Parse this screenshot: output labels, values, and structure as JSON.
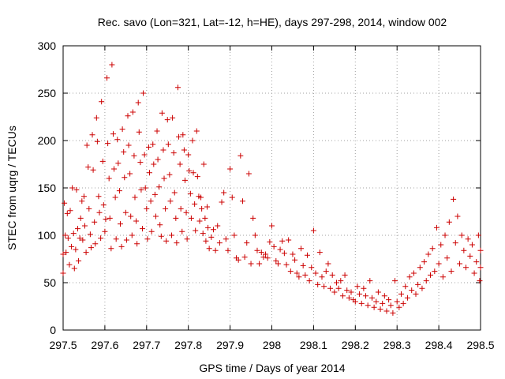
{
  "chart_data": {
    "type": "scatter",
    "title": "Rec. savo (Lon=321, Lat=-12, h=HE), days 297-298, 2014, window 002",
    "xlabel": "GPS time / Days of year 2014",
    "ylabel": "STEC from uqrg / TECUs",
    "xlim": [
      297.5,
      298.5
    ],
    "ylim": [
      0,
      300
    ],
    "xticks": [
      297.5,
      297.6,
      297.7,
      297.8,
      297.9,
      298,
      298.1,
      298.2,
      298.3,
      298.4,
      298.5
    ],
    "xtick_labels": [
      "297.5",
      "297.6",
      "297.7",
      "297.8",
      "297.9",
      "298",
      "298.1",
      "298.2",
      "298.3",
      "298.4",
      "298.5"
    ],
    "yticks": [
      0,
      50,
      100,
      150,
      200,
      250,
      300
    ],
    "ytick_labels": [
      "0",
      "50",
      "100",
      "150",
      "200",
      "250",
      "300"
    ],
    "grid": true,
    "marker": "plus",
    "color": "#cc0000",
    "series": [
      {
        "points": [
          [
            297.5,
            80
          ],
          [
            297.5,
            60
          ],
          [
            297.503,
            134
          ],
          [
            297.505,
            100
          ],
          [
            297.507,
            82
          ],
          [
            297.51,
            123
          ],
          [
            297.512,
            97
          ],
          [
            297.515,
            69
          ],
          [
            297.517,
            126
          ],
          [
            297.52,
            88
          ],
          [
            297.522,
            150
          ],
          [
            297.525,
            102
          ],
          [
            297.527,
            65
          ],
          [
            297.53,
            85
          ],
          [
            297.532,
            148
          ],
          [
            297.535,
            107
          ],
          [
            297.537,
            73
          ],
          [
            297.54,
            97
          ],
          [
            297.542,
            118
          ],
          [
            297.545,
            136
          ],
          [
            297.547,
            95
          ],
          [
            297.55,
            141
          ],
          [
            297.552,
            110
          ],
          [
            297.555,
            82
          ],
          [
            297.557,
            195
          ],
          [
            297.56,
            172
          ],
          [
            297.562,
            128
          ],
          [
            297.565,
            101
          ],
          [
            297.567,
            87
          ],
          [
            297.57,
            206
          ],
          [
            297.572,
            169
          ],
          [
            297.575,
            114
          ],
          [
            297.577,
            91
          ],
          [
            297.58,
            224
          ],
          [
            297.582,
            199
          ],
          [
            297.585,
            141
          ],
          [
            297.587,
            124
          ],
          [
            297.59,
            97
          ],
          [
            297.592,
            241
          ],
          [
            297.595,
            178
          ],
          [
            297.597,
            132
          ],
          [
            297.6,
            104
          ],
          [
            297.602,
            117
          ],
          [
            297.605,
            266
          ],
          [
            297.607,
            197
          ],
          [
            297.61,
            160
          ],
          [
            297.612,
            118
          ],
          [
            297.615,
            86
          ],
          [
            297.617,
            280
          ],
          [
            297.62,
            207
          ],
          [
            297.622,
            170
          ],
          [
            297.625,
            140
          ],
          [
            297.627,
            96
          ],
          [
            297.63,
            201
          ],
          [
            297.632,
            176
          ],
          [
            297.635,
            147
          ],
          [
            297.637,
            112
          ],
          [
            297.64,
            88
          ],
          [
            297.642,
            212
          ],
          [
            297.645,
            188
          ],
          [
            297.647,
            161
          ],
          [
            297.65,
            124
          ],
          [
            297.652,
            95
          ],
          [
            297.655,
            226
          ],
          [
            297.657,
            195
          ],
          [
            297.66,
            165
          ],
          [
            297.662,
            120
          ],
          [
            297.665,
            100
          ],
          [
            297.667,
            230
          ],
          [
            297.67,
            184
          ],
          [
            297.672,
            140
          ],
          [
            297.675,
            115
          ],
          [
            297.677,
            91
          ],
          [
            297.68,
            240
          ],
          [
            297.682,
            209
          ],
          [
            297.685,
            177
          ],
          [
            297.687,
            148
          ],
          [
            297.69,
            107
          ],
          [
            297.692,
            250
          ],
          [
            297.695,
            185
          ],
          [
            297.697,
            150
          ],
          [
            297.7,
            128
          ],
          [
            297.702,
            96
          ],
          [
            297.705,
            193
          ],
          [
            297.707,
            166
          ],
          [
            297.71,
            136
          ],
          [
            297.712,
            104
          ],
          [
            297.715,
            196
          ],
          [
            297.717,
            175
          ],
          [
            297.72,
            143
          ],
          [
            297.722,
            120
          ],
          [
            297.725,
            210
          ],
          [
            297.727,
            180
          ],
          [
            297.73,
            151
          ],
          [
            297.732,
            111
          ],
          [
            297.735,
            99
          ],
          [
            297.737,
            229
          ],
          [
            297.74,
            190
          ],
          [
            297.742,
            160
          ],
          [
            297.745,
            128
          ],
          [
            297.747,
            94
          ],
          [
            297.75,
            222
          ],
          [
            297.752,
            196
          ],
          [
            297.755,
            164
          ],
          [
            297.757,
            136
          ],
          [
            297.76,
            100
          ],
          [
            297.762,
            224
          ],
          [
            297.765,
            187
          ],
          [
            297.767,
            145
          ],
          [
            297.77,
            118
          ],
          [
            297.772,
            92
          ],
          [
            297.775,
            256
          ],
          [
            297.777,
            204
          ],
          [
            297.78,
            175
          ],
          [
            297.782,
            128
          ],
          [
            297.785,
            104
          ],
          [
            297.787,
            206
          ],
          [
            297.79,
            190
          ],
          [
            297.792,
            158
          ],
          [
            297.795,
            124
          ],
          [
            297.797,
            96
          ],
          [
            297.8,
            185
          ],
          [
            297.802,
            168
          ],
          [
            297.805,
            144
          ],
          [
            297.807,
            118
          ],
          [
            297.81,
            200
          ],
          [
            297.812,
            166
          ],
          [
            297.815,
            133
          ],
          [
            297.817,
            105
          ],
          [
            297.82,
            210
          ],
          [
            297.822,
            162
          ],
          [
            297.825,
            141
          ],
          [
            297.827,
            115
          ],
          [
            297.83,
            140
          ],
          [
            297.832,
            128
          ],
          [
            297.835,
            102
          ],
          [
            297.837,
            175
          ],
          [
            297.84,
            118
          ],
          [
            297.842,
            94
          ],
          [
            297.845,
            130
          ],
          [
            297.847,
            108
          ],
          [
            297.85,
            86
          ],
          [
            297.855,
            98
          ],
          [
            297.86,
            106
          ],
          [
            297.865,
            84
          ],
          [
            297.87,
            110
          ],
          [
            297.875,
            92
          ],
          [
            297.88,
            135
          ],
          [
            297.885,
            145
          ],
          [
            297.89,
            96
          ],
          [
            297.895,
            84
          ],
          [
            297.9,
            170
          ],
          [
            297.905,
            140
          ],
          [
            297.91,
            100
          ],
          [
            297.915,
            76
          ],
          [
            297.92,
            74
          ],
          [
            297.925,
            184
          ],
          [
            297.93,
            136
          ],
          [
            297.935,
            77
          ],
          [
            297.94,
            92
          ],
          [
            297.945,
            165
          ],
          [
            297.95,
            70
          ],
          [
            297.955,
            118
          ],
          [
            297.96,
            100
          ],
          [
            297.965,
            84
          ],
          [
            297.97,
            70
          ],
          [
            297.975,
            82
          ],
          [
            297.98,
            77
          ],
          [
            297.985,
            80
          ],
          [
            297.99,
            76
          ],
          [
            297.995,
            93
          ],
          [
            298.0,
            110
          ],
          [
            298.005,
            88
          ],
          [
            298.01,
            73
          ],
          [
            298.015,
            70
          ],
          [
            298.02,
            85
          ],
          [
            298.025,
            94
          ],
          [
            298.03,
            81
          ],
          [
            298.035,
            69
          ],
          [
            298.04,
            95
          ],
          [
            298.045,
            62
          ],
          [
            298.05,
            80
          ],
          [
            298.055,
            74
          ],
          [
            298.06,
            60
          ],
          [
            298.065,
            56
          ],
          [
            298.07,
            86
          ],
          [
            298.075,
            68
          ],
          [
            298.08,
            58
          ],
          [
            298.085,
            79
          ],
          [
            298.09,
            52
          ],
          [
            298.095,
            66
          ],
          [
            298.1,
            105
          ],
          [
            298.105,
            60
          ],
          [
            298.11,
            48
          ],
          [
            298.115,
            82
          ],
          [
            298.12,
            56
          ],
          [
            298.125,
            46
          ],
          [
            298.13,
            62
          ],
          [
            298.135,
            70
          ],
          [
            298.14,
            44
          ],
          [
            298.145,
            58
          ],
          [
            298.15,
            40
          ],
          [
            298.155,
            50
          ],
          [
            298.16,
            44
          ],
          [
            298.165,
            52
          ],
          [
            298.17,
            36
          ],
          [
            298.175,
            58
          ],
          [
            298.18,
            42
          ],
          [
            298.185,
            34
          ],
          [
            298.19,
            40
          ],
          [
            298.195,
            32
          ],
          [
            298.2,
            30
          ],
          [
            298.205,
            46
          ],
          [
            298.21,
            38
          ],
          [
            298.215,
            28
          ],
          [
            298.22,
            44
          ],
          [
            298.225,
            36
          ],
          [
            298.23,
            26
          ],
          [
            298.235,
            52
          ],
          [
            298.24,
            34
          ],
          [
            298.245,
            24
          ],
          [
            298.25,
            30
          ],
          [
            298.255,
            40
          ],
          [
            298.26,
            22
          ],
          [
            298.265,
            28
          ],
          [
            298.27,
            36
          ],
          [
            298.275,
            20
          ],
          [
            298.28,
            32
          ],
          [
            298.285,
            26
          ],
          [
            298.29,
            18
          ],
          [
            298.295,
            52
          ],
          [
            298.3,
            30
          ],
          [
            298.305,
            24
          ],
          [
            298.31,
            38
          ],
          [
            298.315,
            28
          ],
          [
            298.32,
            46
          ],
          [
            298.325,
            34
          ],
          [
            298.33,
            56
          ],
          [
            298.335,
            42
          ],
          [
            298.34,
            60
          ],
          [
            298.345,
            38
          ],
          [
            298.35,
            48
          ],
          [
            298.355,
            66
          ],
          [
            298.36,
            44
          ],
          [
            298.365,
            72
          ],
          [
            298.37,
            52
          ],
          [
            298.375,
            80
          ],
          [
            298.38,
            58
          ],
          [
            298.385,
            86
          ],
          [
            298.39,
            62
          ],
          [
            298.395,
            108
          ],
          [
            298.4,
            70
          ],
          [
            298.405,
            90
          ],
          [
            298.41,
            56
          ],
          [
            298.415,
            100
          ],
          [
            298.42,
            76
          ],
          [
            298.425,
            114
          ],
          [
            298.43,
            62
          ],
          [
            298.435,
            138
          ],
          [
            298.44,
            92
          ],
          [
            298.445,
            120
          ],
          [
            298.45,
            70
          ],
          [
            298.455,
            100
          ],
          [
            298.46,
            84
          ],
          [
            298.465,
            66
          ],
          [
            298.47,
            96
          ],
          [
            298.475,
            78
          ],
          [
            298.48,
            90
          ],
          [
            298.485,
            60
          ],
          [
            298.49,
            72
          ],
          [
            298.495,
            100
          ],
          [
            298.5,
            66
          ],
          [
            298.5,
            84
          ],
          [
            298.498,
            52
          ]
        ]
      }
    ]
  }
}
